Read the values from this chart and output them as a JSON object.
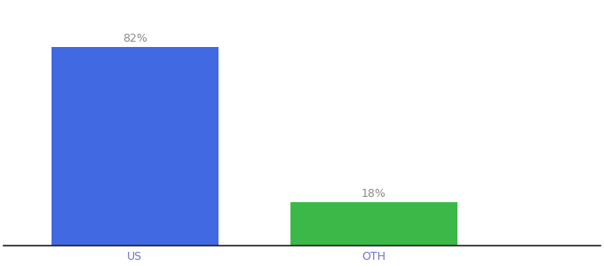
{
  "categories": [
    "US",
    "OTH"
  ],
  "values": [
    82,
    18
  ],
  "bar_colors": [
    "#4169E1",
    "#3CB849"
  ],
  "labels": [
    "82%",
    "18%"
  ],
  "ylim": [
    0,
    100
  ],
  "background_color": "#ffffff",
  "label_fontsize": 9,
  "tick_fontsize": 9,
  "bar_width": 0.28,
  "x_positions": [
    0.22,
    0.62
  ],
  "xlim": [
    0,
    1.0
  ],
  "tick_color": "#7070cc",
  "label_color": "#888888"
}
